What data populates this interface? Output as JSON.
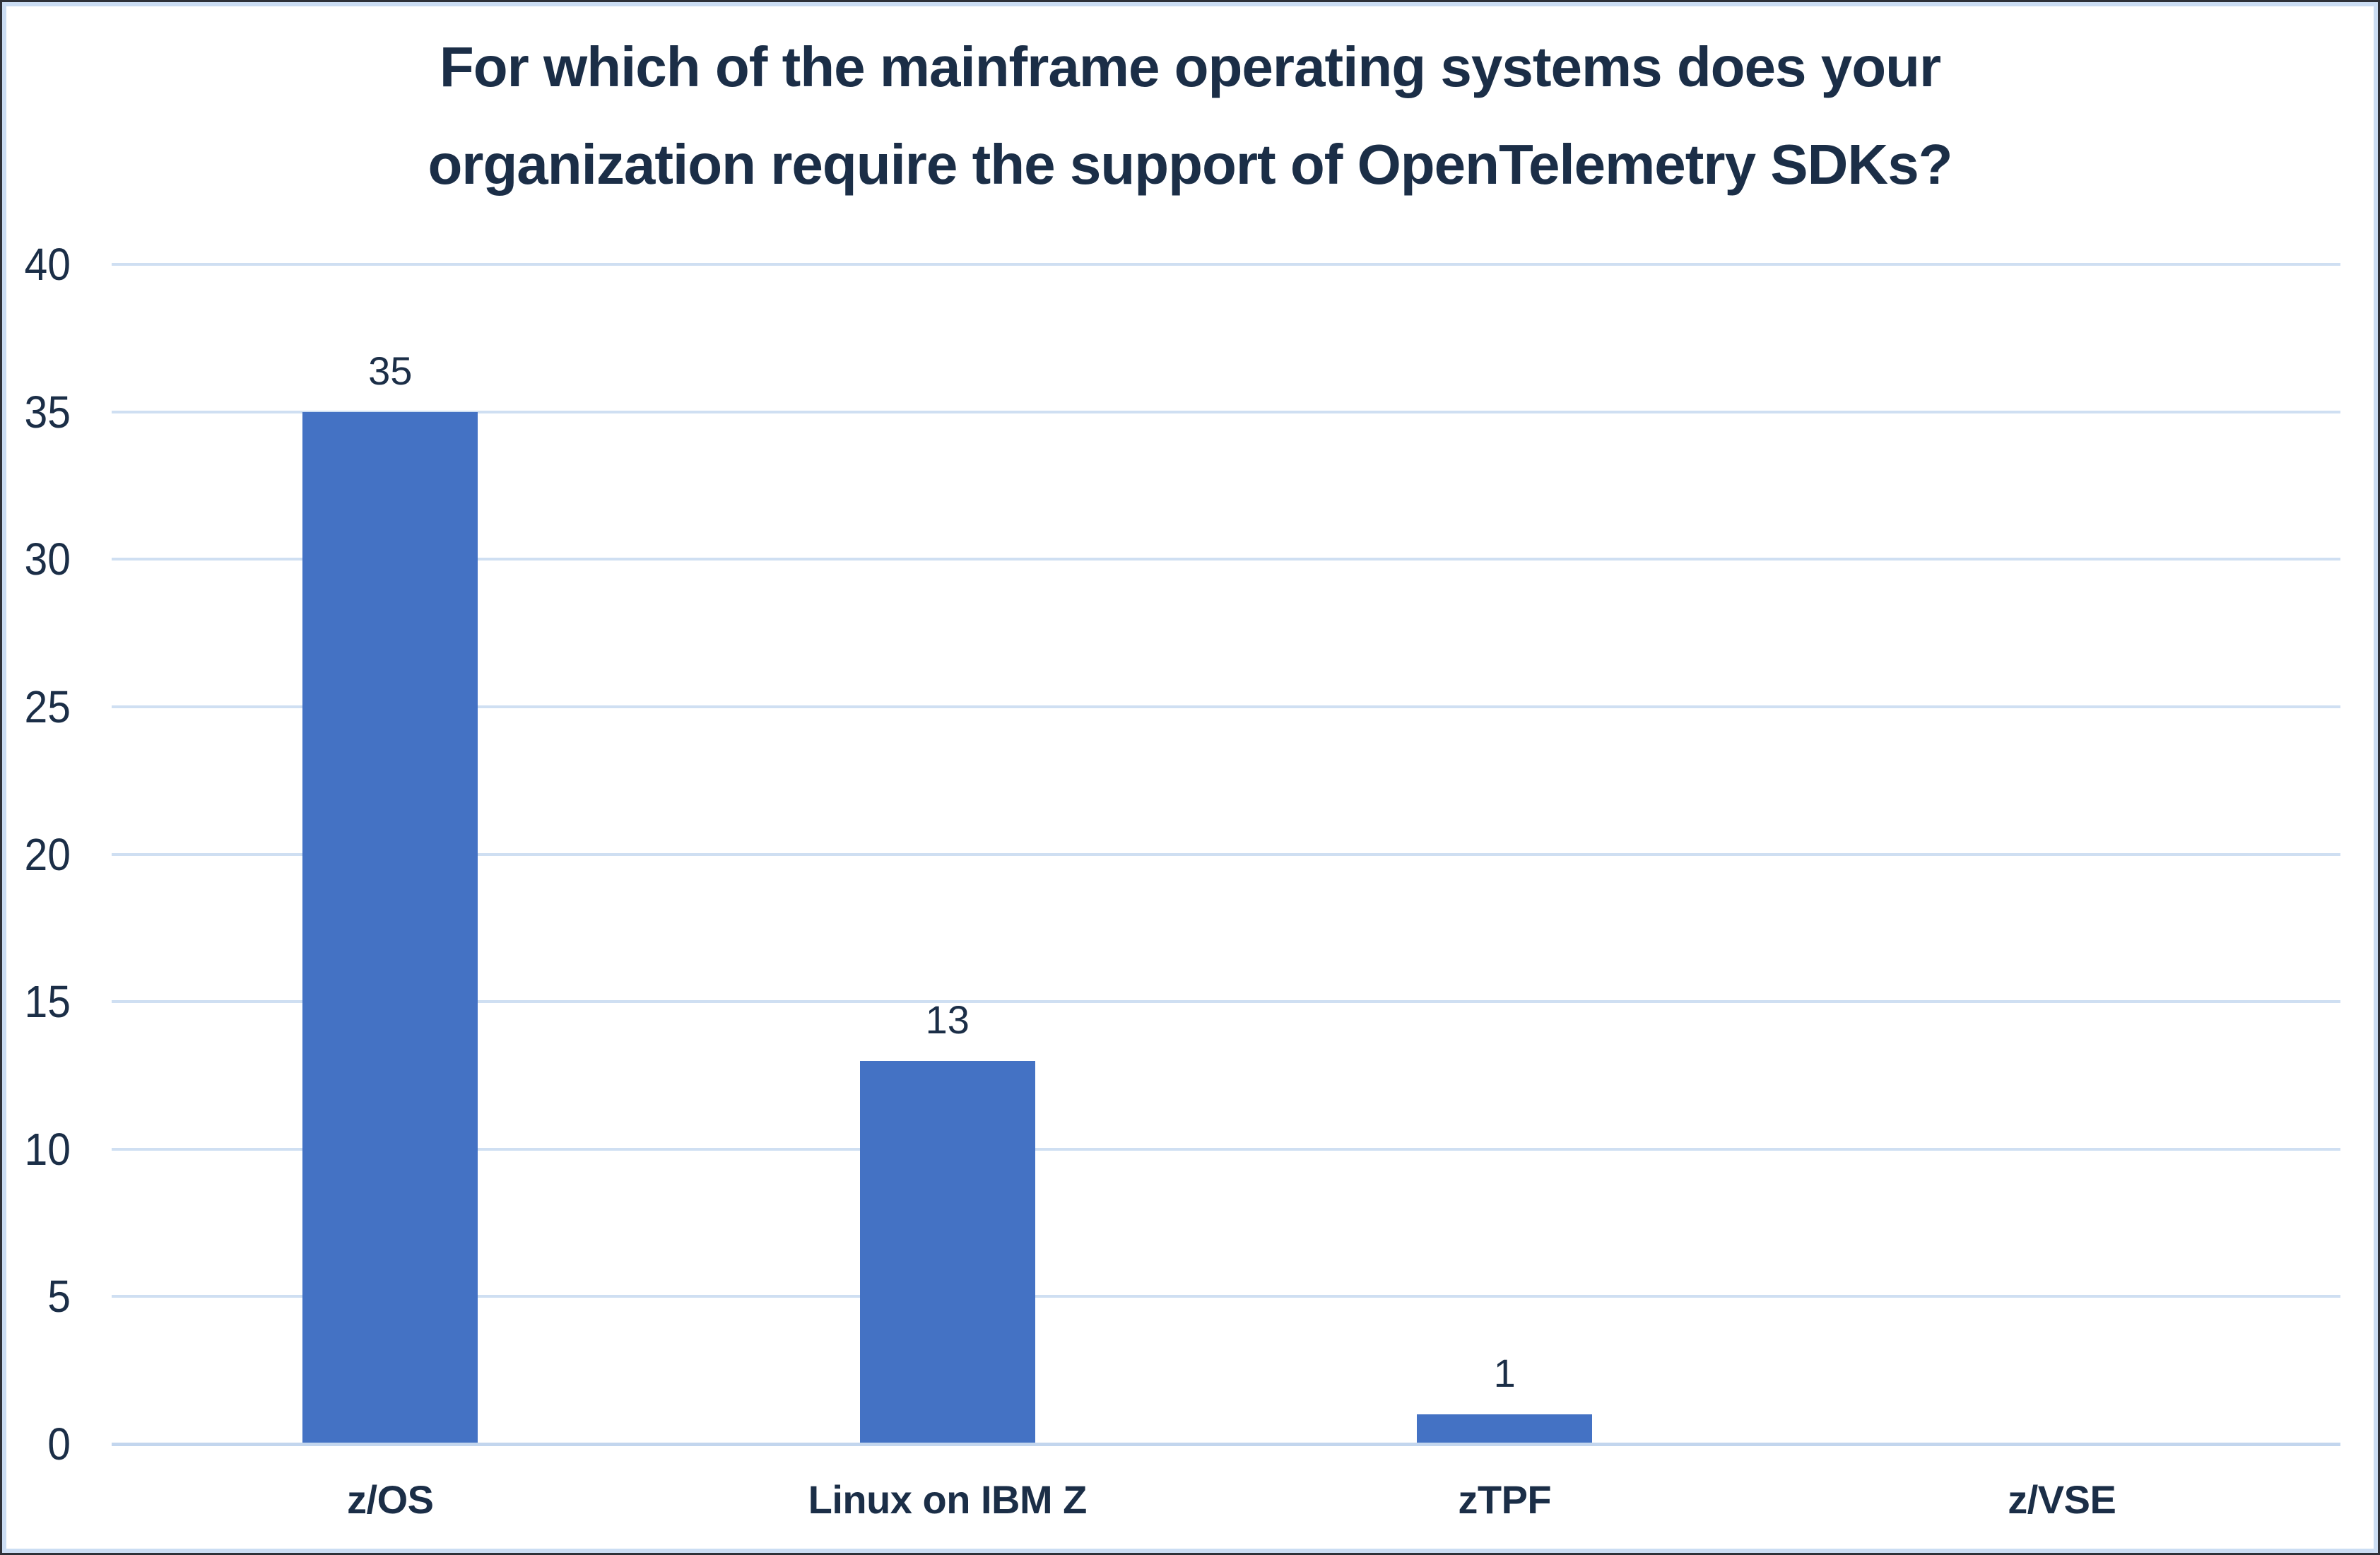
{
  "page": {
    "background": "#ffffff",
    "outer_border_color": "#2e3138",
    "inner_border_color": "#cbddf3"
  },
  "colors": {
    "title_text": "#1b2e47",
    "tick_text": "#1b2e47",
    "category_text": "#1b2e47",
    "data_label_text": "#1b2e47",
    "bar_fill": "#4472c4",
    "gridline": "#cfdff2",
    "axis_line": "#c3d6ee"
  },
  "chart_data": {
    "type": "bar",
    "title": "For which of the mainframe operating systems does your organization require the support of OpenTelemetry SDKs?",
    "title_lines": [
      "For which of the mainframe operating systems does your",
      "organization require the support of OpenTelemetry SDKs?"
    ],
    "categories": [
      "z/OS",
      "Linux on IBM Z",
      "zTPF",
      "z/VSE"
    ],
    "values": [
      35,
      13,
      1,
      0
    ],
    "data_labels": [
      "35",
      "13",
      "1",
      ""
    ],
    "xlabel": "",
    "ylabel": "",
    "ylim": [
      0,
      40
    ],
    "ytick_step": 5,
    "yticks": [
      0,
      5,
      10,
      15,
      20,
      25,
      30,
      35,
      40
    ],
    "grid": true,
    "legend_position": "none"
  }
}
